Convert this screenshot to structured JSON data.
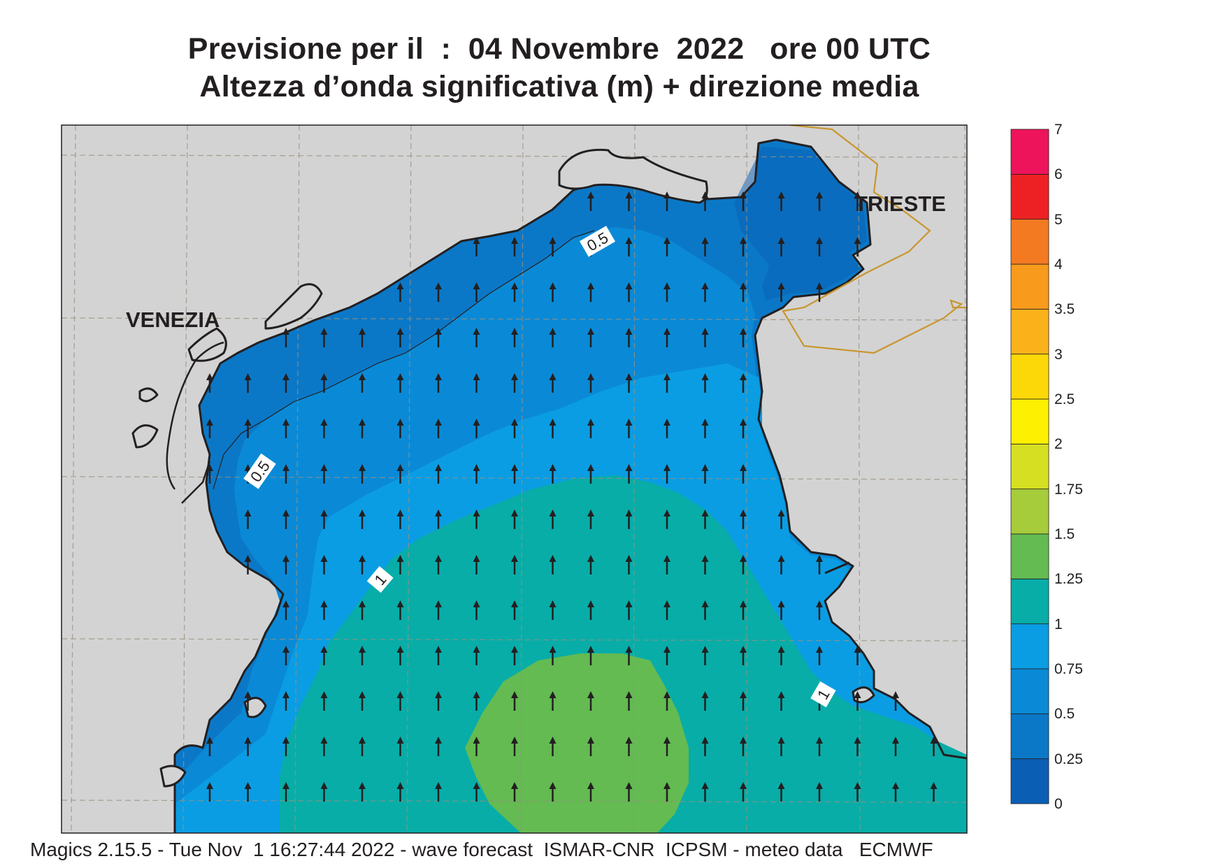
{
  "title": {
    "line1": "Previsione per il  :  04 Novembre  2022   ore 00 UTC",
    "line2": "Altezza d’onda significativa (m) + direzione media"
  },
  "footer": "Magics 2.15.5 - Tue Nov  1 16:27:44 2022 - wave forecast  ISMAR-CNR  ICPSM - meteo data   ECMWF",
  "map": {
    "cities": [
      "VENEZIA",
      "TRIESTE"
    ],
    "contour_labels": [
      "0.5",
      "0.5",
      "1",
      "1"
    ],
    "arrow_direction": "north",
    "colors": {
      "land": "#d3d3d3",
      "coast": "#231f20",
      "graticule": "#9a9080",
      "border": "#c8962e"
    }
  },
  "colorbar": {
    "levels": [
      "0",
      "0.25",
      "0.5",
      "0.75",
      "1",
      "1.25",
      "1.5",
      "1.75",
      "2",
      "2.5",
      "3",
      "3.5",
      "4",
      "5",
      "6",
      "7"
    ],
    "colors": [
      "#0a5fb5",
      "#0b78c7",
      "#0a8ad6",
      "#0a9de3",
      "#08ada8",
      "#63bb52",
      "#a6cb3b",
      "#d7df23",
      "#fdf000",
      "#fdd808",
      "#fbb21a",
      "#f89a1c",
      "#f37a21",
      "#ed2124",
      "#ed145b"
    ]
  }
}
